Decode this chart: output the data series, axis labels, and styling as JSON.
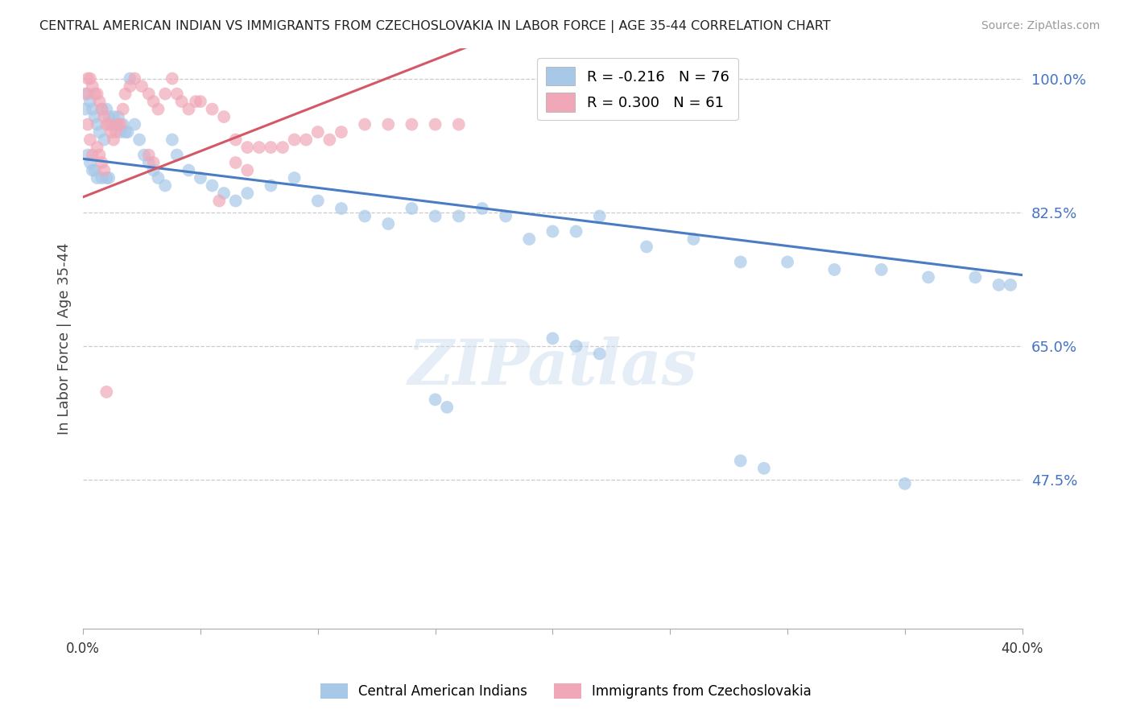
{
  "title": "CENTRAL AMERICAN INDIAN VS IMMIGRANTS FROM CZECHOSLOVAKIA IN LABOR FORCE | AGE 35-44 CORRELATION CHART",
  "source": "Source: ZipAtlas.com",
  "ylabel": "In Labor Force | Age 35-44",
  "xlim": [
    0.0,
    0.4
  ],
  "ylim": [
    0.28,
    1.04
  ],
  "grid_yticks": [
    1.0,
    0.825,
    0.65,
    0.475
  ],
  "grid_ytick_labels": [
    "100.0%",
    "82.5%",
    "65.0%",
    "47.5%"
  ],
  "xticks": [
    0.0,
    0.05,
    0.1,
    0.15,
    0.2,
    0.25,
    0.3,
    0.35,
    0.4
  ],
  "xtick_labels": [
    "0.0%",
    "",
    "",
    "",
    "",
    "",
    "",
    "",
    "40.0%"
  ],
  "blue_color": "#a8c8e8",
  "pink_color": "#f0a8b8",
  "blue_line_color": "#4a7cc4",
  "pink_line_color": "#d45868",
  "legend_blue_label": "R = -0.216   N = 76",
  "legend_pink_label": "R = 0.300   N = 61",
  "legend_series1": "Central American Indians",
  "legend_series2": "Immigrants from Czechoslovakia",
  "watermark": "ZIPatlas",
  "blue_intercept": 0.895,
  "blue_slope": -0.38,
  "pink_intercept": 0.845,
  "pink_slope": 1.2,
  "blue_x": [
    0.001,
    0.002,
    0.002,
    0.003,
    0.003,
    0.004,
    0.004,
    0.005,
    0.005,
    0.006,
    0.006,
    0.007,
    0.008,
    0.008,
    0.009,
    0.01,
    0.01,
    0.011,
    0.011,
    0.012,
    0.013,
    0.014,
    0.015,
    0.016,
    0.017,
    0.018,
    0.019,
    0.02,
    0.022,
    0.024,
    0.026,
    0.028,
    0.03,
    0.032,
    0.035,
    0.038,
    0.04,
    0.045,
    0.05,
    0.055,
    0.06,
    0.065,
    0.07,
    0.08,
    0.09,
    0.1,
    0.11,
    0.12,
    0.13,
    0.14,
    0.15,
    0.16,
    0.17,
    0.18,
    0.19,
    0.2,
    0.21,
    0.22,
    0.24,
    0.26,
    0.28,
    0.3,
    0.32,
    0.34,
    0.36,
    0.38,
    0.39,
    0.15,
    0.155,
    0.2,
    0.21,
    0.22,
    0.28,
    0.29,
    0.35,
    0.395
  ],
  "blue_y": [
    0.96,
    0.98,
    0.9,
    0.97,
    0.89,
    0.96,
    0.88,
    0.95,
    0.88,
    0.94,
    0.87,
    0.93,
    0.96,
    0.87,
    0.92,
    0.96,
    0.87,
    0.95,
    0.87,
    0.94,
    0.95,
    0.94,
    0.95,
    0.93,
    0.94,
    0.93,
    0.93,
    1.0,
    0.94,
    0.92,
    0.9,
    0.89,
    0.88,
    0.87,
    0.86,
    0.92,
    0.9,
    0.88,
    0.87,
    0.86,
    0.85,
    0.84,
    0.85,
    0.86,
    0.87,
    0.84,
    0.83,
    0.82,
    0.81,
    0.83,
    0.82,
    0.82,
    0.83,
    0.82,
    0.79,
    0.8,
    0.8,
    0.82,
    0.78,
    0.79,
    0.76,
    0.76,
    0.75,
    0.75,
    0.74,
    0.74,
    0.73,
    0.58,
    0.57,
    0.66,
    0.65,
    0.64,
    0.5,
    0.49,
    0.47,
    0.73
  ],
  "pink_x": [
    0.001,
    0.002,
    0.002,
    0.003,
    0.003,
    0.004,
    0.004,
    0.005,
    0.006,
    0.006,
    0.007,
    0.007,
    0.008,
    0.008,
    0.009,
    0.009,
    0.01,
    0.011,
    0.012,
    0.013,
    0.014,
    0.015,
    0.016,
    0.017,
    0.018,
    0.02,
    0.022,
    0.025,
    0.028,
    0.03,
    0.032,
    0.035,
    0.038,
    0.04,
    0.042,
    0.045,
    0.048,
    0.05,
    0.055,
    0.06,
    0.065,
    0.07,
    0.075,
    0.08,
    0.085,
    0.09,
    0.095,
    0.1,
    0.105,
    0.11,
    0.12,
    0.13,
    0.14,
    0.15,
    0.16,
    0.065,
    0.07,
    0.028,
    0.03,
    0.058,
    0.01
  ],
  "pink_y": [
    0.98,
    1.0,
    0.94,
    1.0,
    0.92,
    0.99,
    0.9,
    0.98,
    0.98,
    0.91,
    0.97,
    0.9,
    0.96,
    0.89,
    0.95,
    0.88,
    0.94,
    0.94,
    0.93,
    0.92,
    0.93,
    0.94,
    0.94,
    0.96,
    0.98,
    0.99,
    1.0,
    0.99,
    0.98,
    0.97,
    0.96,
    0.98,
    1.0,
    0.98,
    0.97,
    0.96,
    0.97,
    0.97,
    0.96,
    0.95,
    0.92,
    0.91,
    0.91,
    0.91,
    0.91,
    0.92,
    0.92,
    0.93,
    0.92,
    0.93,
    0.94,
    0.94,
    0.94,
    0.94,
    0.94,
    0.89,
    0.88,
    0.9,
    0.89,
    0.84,
    0.59
  ]
}
